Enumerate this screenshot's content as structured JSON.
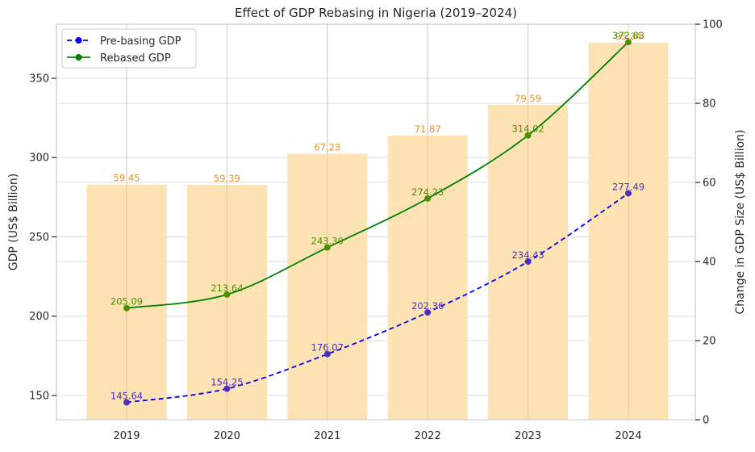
{
  "chart_data": {
    "type": "bar+line",
    "title": "Effect of GDP Rebasing in Nigeria (2019–2024)",
    "categories": [
      "2019",
      "2020",
      "2021",
      "2022",
      "2023",
      "2024"
    ],
    "xlabel": "",
    "ylabel_left": "GDP (US$ Billion)",
    "ylabel_right": "Change in GDP Size (US$ Billion)",
    "ylim_left": [
      134.7,
      384.1
    ],
    "ylim_right": [
      0,
      100
    ],
    "yticks_left": [
      "150",
      "200",
      "250",
      "300",
      "350"
    ],
    "yticks_right": [
      "0",
      "20",
      "40",
      "60",
      "80",
      "100"
    ],
    "grid": true,
    "legend_position": "top-left",
    "series": [
      {
        "name": "Pre-basing GDP",
        "type": "line",
        "axis": "left",
        "style": "dashed",
        "color": "#0000ff",
        "label_color": "#4b2fbf",
        "values": [
          145.64,
          154.25,
          176.07,
          202.36,
          234.43,
          277.49
        ],
        "labels": [
          "145.64",
          "154.25",
          "176.07",
          "202.36",
          "234.43",
          "277.49"
        ]
      },
      {
        "name": "Rebased GDP",
        "type": "line",
        "axis": "left",
        "style": "solid",
        "color": "#008000",
        "label_color": "#4d8f00",
        "values": [
          205.09,
          213.64,
          243.3,
          274.23,
          314.02,
          372.83
        ],
        "labels": [
          "205.09",
          "213.64",
          "243.30",
          "274.23",
          "314.02",
          "372.83"
        ]
      },
      {
        "name": "Change in GDP Size",
        "type": "bar",
        "axis": "right",
        "color": "#fde2b3",
        "label_color": "#f0901c",
        "values": [
          59.45,
          59.39,
          67.23,
          71.87,
          79.59,
          95.34
        ],
        "labels": [
          "59.45",
          "59.39",
          "67.23",
          "71.87",
          "79.59",
          "95.34"
        ]
      }
    ],
    "legend": [
      {
        "label": "Pre-basing GDP",
        "series": 0
      },
      {
        "label": "Rebased GDP",
        "series": 1
      }
    ]
  }
}
